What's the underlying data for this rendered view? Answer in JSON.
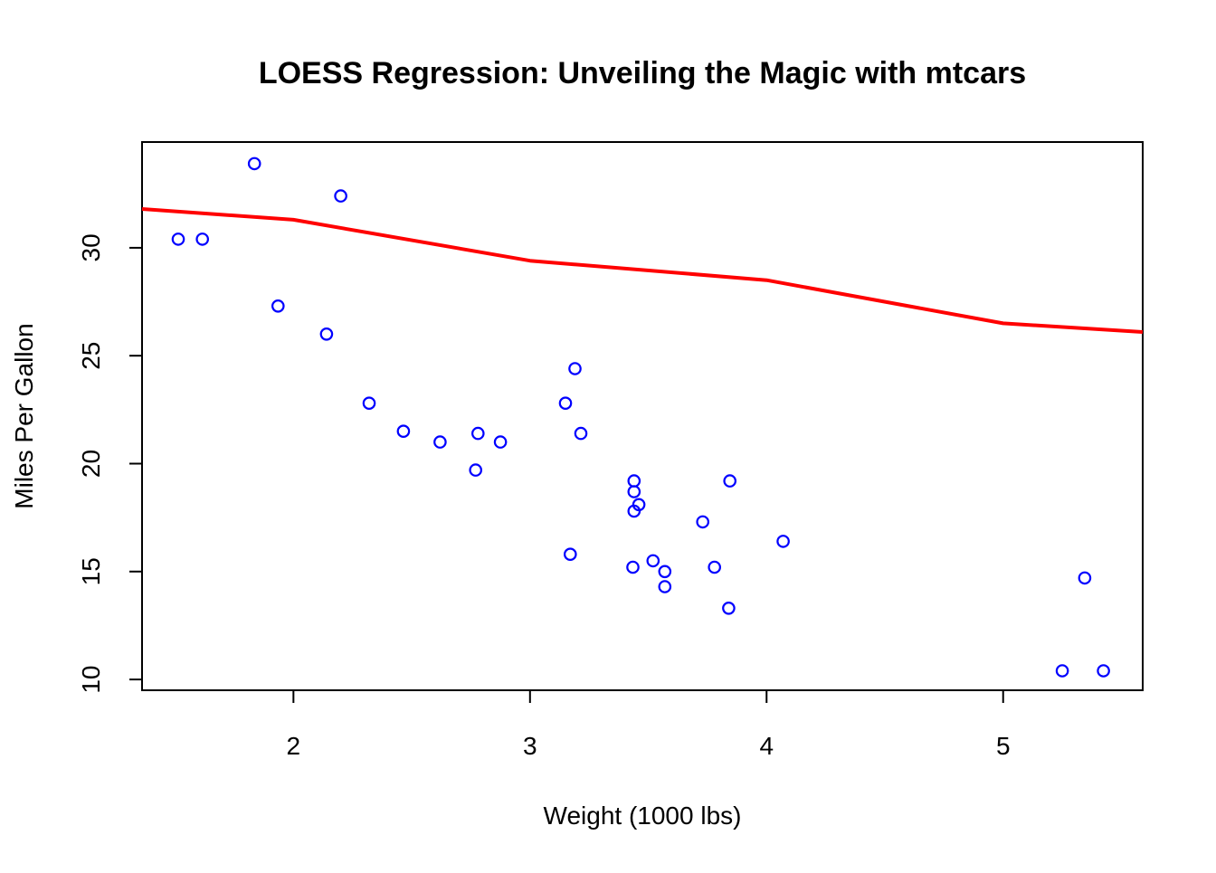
{
  "chart_data": {
    "type": "scatter",
    "title": "LOESS Regression: Unveiling the Magic with mtcars",
    "xlabel": "Weight (1000 lbs)",
    "ylabel": "Miles Per Gallon",
    "xlim": [
      1.36,
      5.59
    ],
    "ylim": [
      9.5,
      34.9
    ],
    "xticks": [
      2,
      3,
      4,
      5
    ],
    "yticks": [
      10,
      15,
      20,
      25,
      30
    ],
    "grid": false,
    "legend": "none",
    "colors": {
      "points": "#0000ff",
      "line": "#ff0000"
    },
    "series": [
      {
        "type": "scatter",
        "marker": "open-circle",
        "x": [
          2.62,
          2.875,
          2.32,
          3.215,
          3.44,
          3.46,
          3.57,
          3.19,
          3.15,
          3.44,
          3.44,
          4.07,
          3.73,
          3.78,
          5.25,
          5.424,
          5.345,
          2.2,
          1.615,
          1.835,
          2.465,
          3.52,
          3.435,
          3.84,
          3.845,
          1.935,
          2.14,
          1.513,
          3.17,
          2.77,
          3.57,
          2.78
        ],
        "y": [
          21.0,
          21.0,
          22.8,
          21.4,
          18.7,
          18.1,
          14.3,
          24.4,
          22.8,
          19.2,
          17.8,
          16.4,
          17.3,
          15.2,
          10.4,
          10.4,
          14.7,
          32.4,
          30.4,
          33.9,
          21.5,
          15.5,
          15.2,
          13.3,
          19.2,
          27.3,
          26.0,
          30.4,
          15.8,
          19.7,
          15.0,
          21.4
        ]
      },
      {
        "type": "line",
        "x": [
          1.36,
          2.0,
          3.0,
          4.0,
          5.0,
          5.59
        ],
        "y": [
          31.8,
          31.3,
          29.4,
          28.5,
          26.5,
          26.1
        ]
      }
    ]
  }
}
